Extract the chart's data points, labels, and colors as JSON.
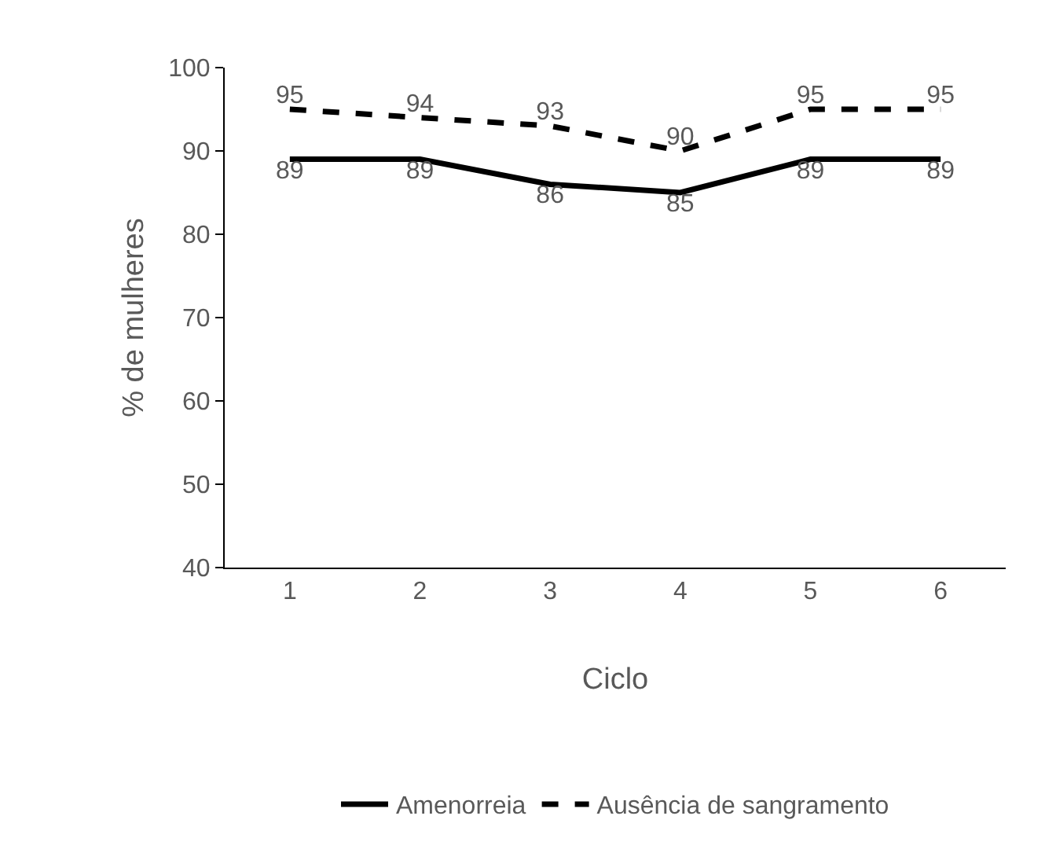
{
  "chart_data": {
    "type": "line",
    "xlabel": "Ciclo",
    "ylabel": "% de mulheres",
    "categories": [
      "1",
      "2",
      "3",
      "4",
      "5",
      "6"
    ],
    "series": [
      {
        "name": "Amenorreia",
        "color": "#000000",
        "values": [
          89,
          89,
          86,
          85,
          89,
          89
        ],
        "line_style": "solid"
      },
      {
        "name": "Ausência de sangramento",
        "color": "#000000",
        "values": [
          95,
          94,
          93,
          90,
          95,
          95
        ],
        "line_style": "dashed"
      }
    ],
    "ylim": [
      40,
      100
    ],
    "yticks": [
      40,
      50,
      60,
      70,
      80,
      90,
      100
    ],
    "data_labels": true,
    "legend": "bottom",
    "grid": false,
    "marker": "none"
  }
}
